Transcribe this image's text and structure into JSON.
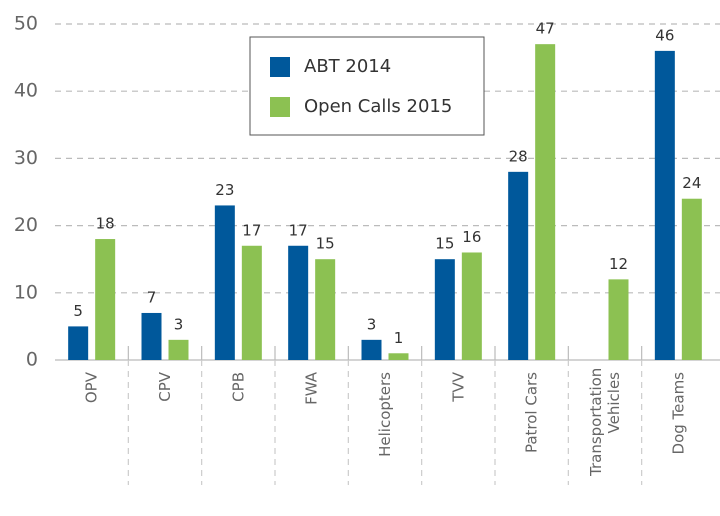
{
  "chart_data": {
    "type": "bar",
    "categories": [
      "OPV",
      "CPV",
      "CPB",
      "FWA",
      "Helicopters",
      "TVV",
      "Patrol Cars",
      "Transportation Vehicles",
      "Dog Teams"
    ],
    "series": [
      {
        "name": "ABT 2014",
        "color": "#00589b",
        "values": [
          5,
          7,
          23,
          17,
          3,
          15,
          28,
          null,
          46
        ]
      },
      {
        "name": "Open Calls 2015",
        "color": "#8cc152",
        "values": [
          18,
          3,
          17,
          15,
          1,
          16,
          47,
          12,
          24
        ]
      }
    ],
    "ylim": [
      0,
      50
    ],
    "yticks": [
      0,
      10,
      20,
      30,
      40,
      50
    ],
    "grid": true,
    "legend": "top"
  }
}
